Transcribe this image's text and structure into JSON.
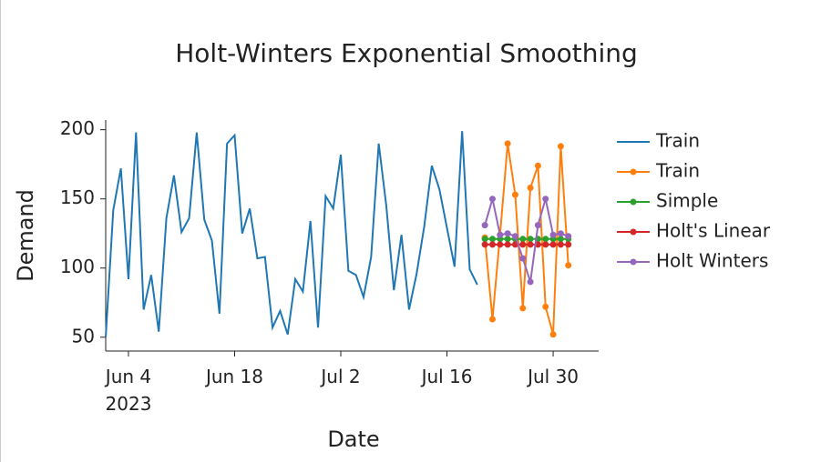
{
  "chart_data": {
    "type": "line",
    "title": "Holt-Winters Exponential Smoothing",
    "x_label": "Date",
    "y_label": "Demand",
    "xlim": [
      "2023-06-01",
      "2023-08-05"
    ],
    "ylim": [
      40,
      207
    ],
    "yticks": [
      50,
      100,
      150,
      200
    ],
    "xticks": [
      {
        "value": "2023-06-04",
        "label": "Jun 4\n2023"
      },
      {
        "value": "2023-06-18",
        "label": "Jun 18"
      },
      {
        "value": "2023-07-02",
        "label": "Jul 2"
      },
      {
        "value": "2023-07-16",
        "label": "Jul 16"
      },
      {
        "value": "2023-07-30",
        "label": "Jul 30"
      }
    ],
    "grid": false,
    "legend": "right",
    "series": [
      {
        "name": "Train",
        "color": "#1f77b4",
        "mode": "lines",
        "x": [
          "2023-06-01",
          "2023-06-02",
          "2023-06-03",
          "2023-06-04",
          "2023-06-05",
          "2023-06-06",
          "2023-06-07",
          "2023-06-08",
          "2023-06-09",
          "2023-06-10",
          "2023-06-11",
          "2023-06-12",
          "2023-06-13",
          "2023-06-14",
          "2023-06-15",
          "2023-06-16",
          "2023-06-17",
          "2023-06-18",
          "2023-06-19",
          "2023-06-20",
          "2023-06-21",
          "2023-06-22",
          "2023-06-23",
          "2023-06-24",
          "2023-06-25",
          "2023-06-26",
          "2023-06-27",
          "2023-06-28",
          "2023-06-29",
          "2023-06-30",
          "2023-07-01",
          "2023-07-02",
          "2023-07-03",
          "2023-07-04",
          "2023-07-05",
          "2023-07-06",
          "2023-07-07",
          "2023-07-08",
          "2023-07-09",
          "2023-07-10",
          "2023-07-11",
          "2023-07-12",
          "2023-07-13",
          "2023-07-14",
          "2023-07-15",
          "2023-07-16",
          "2023-07-17",
          "2023-07-18",
          "2023-07-19",
          "2023-07-20"
        ],
        "values": [
          50,
          142,
          172,
          92,
          198,
          70,
          95,
          54,
          136,
          167,
          126,
          136,
          198,
          135,
          120,
          67,
          190,
          196,
          125,
          143,
          107,
          108,
          57,
          69,
          52,
          92,
          83,
          134,
          57,
          152,
          143,
          182,
          98,
          95,
          79,
          108,
          190,
          145,
          84,
          124,
          70,
          96,
          130,
          174,
          157,
          129,
          101,
          199,
          99,
          88
        ]
      },
      {
        "name": "Train",
        "color": "#ff7f0e",
        "mode": "lines+markers",
        "x": [
          "2023-07-21",
          "2023-07-22",
          "2023-07-23",
          "2023-07-24",
          "2023-07-25",
          "2023-07-26",
          "2023-07-27",
          "2023-07-28",
          "2023-07-29",
          "2023-07-30",
          "2023-07-31",
          "2023-08-01"
        ],
        "values": [
          122,
          63,
          124,
          190,
          153,
          71,
          158,
          174,
          72,
          52,
          188,
          102
        ]
      },
      {
        "name": "Simple",
        "color": "#2ca02c",
        "mode": "lines+markers",
        "x": [
          "2023-07-21",
          "2023-07-22",
          "2023-07-23",
          "2023-07-24",
          "2023-07-25",
          "2023-07-26",
          "2023-07-27",
          "2023-07-28",
          "2023-07-29",
          "2023-07-30",
          "2023-07-31",
          "2023-08-01"
        ],
        "values": [
          121,
          121,
          121,
          121,
          121,
          121,
          121,
          121,
          121,
          121,
          121,
          121
        ]
      },
      {
        "name": "Holt's Linear",
        "color": "#d62728",
        "mode": "lines+markers",
        "x": [
          "2023-07-21",
          "2023-07-22",
          "2023-07-23",
          "2023-07-24",
          "2023-07-25",
          "2023-07-26",
          "2023-07-27",
          "2023-07-28",
          "2023-07-29",
          "2023-07-30",
          "2023-07-31",
          "2023-08-01"
        ],
        "values": [
          117,
          117,
          117,
          117,
          117,
          117,
          117,
          117,
          117,
          117,
          117,
          117
        ]
      },
      {
        "name": "Holt Winters",
        "color": "#9467bd",
        "mode": "lines+markers",
        "x": [
          "2023-07-21",
          "2023-07-22",
          "2023-07-23",
          "2023-07-24",
          "2023-07-25",
          "2023-07-26",
          "2023-07-27",
          "2023-07-28",
          "2023-07-29",
          "2023-07-30",
          "2023-07-31",
          "2023-08-01"
        ],
        "values": [
          131,
          150,
          124,
          125,
          123,
          107,
          90,
          131,
          150,
          124,
          125,
          123
        ]
      }
    ]
  }
}
